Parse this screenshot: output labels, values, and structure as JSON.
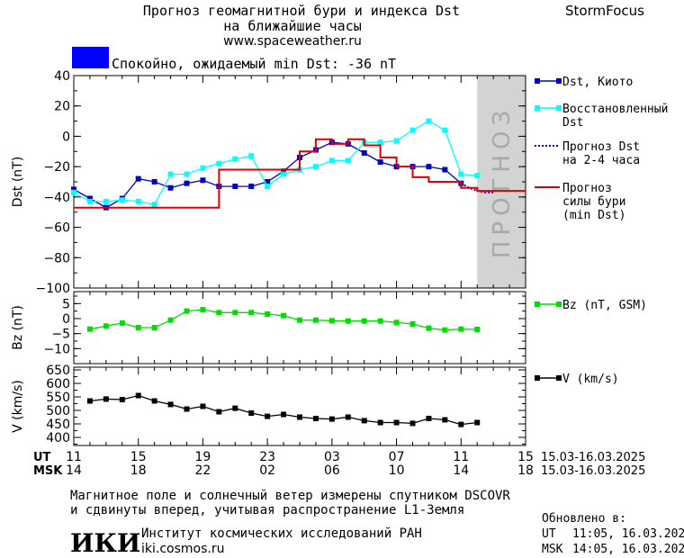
{
  "header": {
    "title_line1": "Прогноз геомагнитной бури и индекса Dst",
    "title_line2": "на ближайшие часы",
    "url": "www.spaceweather.ru",
    "brand": "StormFocus",
    "status_text": "Спокойно, ожидаемый min Dst: -36 nT",
    "status_color": "#0000ff"
  },
  "forecast_label": "ПРОГНОЗ",
  "time_axis": {
    "ut_label": "UT",
    "msk_label": "MSK",
    "ut_ticks": [
      "11",
      "15",
      "19",
      "23",
      "03",
      "07",
      "11",
      "15"
    ],
    "msk_ticks": [
      "14",
      "18",
      "22",
      "02",
      "06",
      "10",
      "14",
      "18"
    ],
    "ut_range": "15.03-16.03.2025",
    "msk_range": "15.03-16.03.2025"
  },
  "footer": {
    "note_line1": "Магнитное поле и солнечный ветер измерены спутником DSCOVR",
    "note_line2": "и сдвинуты вперед, учитывая распространение L1-Земля",
    "logo_text": "ИКИ",
    "institute": "Институт космических исследований РАН",
    "institute_url": "iki.cosmos.ru",
    "updated_label": "Обновлено в:",
    "updated_ut_label": "UT",
    "updated_ut": "11:05, 16.03.2025",
    "updated_msk_label": "MSK",
    "updated_msk": "14:05, 16.03.2025"
  },
  "chart_data": [
    {
      "type": "line",
      "panel": "dst",
      "ylabel": "Dst (nT)",
      "ylim": [
        -100,
        40
      ],
      "yticks": [
        40,
        20,
        0,
        -20,
        -40,
        -60,
        -80,
        -100
      ],
      "xlim": [
        0,
        28
      ],
      "forecast_region": [
        25,
        28
      ],
      "series": [
        {
          "name": "Dst, Киото",
          "color": "#0000cc",
          "marker": "square",
          "x": [
            0,
            1,
            2,
            3,
            4,
            5,
            6,
            7,
            8,
            9,
            10,
            11,
            12,
            13,
            14,
            15,
            16,
            17,
            18,
            19,
            20,
            21,
            22,
            23,
            24
          ],
          "values": [
            -35,
            -41,
            -47,
            -41,
            -28,
            -30,
            -34,
            -31,
            -29,
            -33,
            -33,
            -33,
            -30,
            -23,
            -14,
            -9,
            -4,
            -5,
            -11,
            -17,
            -20,
            -20,
            -20,
            -22,
            -31
          ]
        },
        {
          "name": "Восстановленный Dst",
          "color": "#00ffff",
          "marker": "square",
          "x": [
            0,
            1,
            2,
            3,
            4,
            5,
            6,
            7,
            8,
            9,
            10,
            11,
            12,
            13,
            14,
            15,
            16,
            17,
            18,
            19,
            20,
            21,
            22,
            23,
            24,
            25
          ],
          "values": [
            -37,
            -43,
            -43,
            -42,
            -43,
            -45,
            -25,
            -25,
            -21,
            -18,
            -15,
            -13,
            -33,
            -25,
            -22,
            -20,
            -16,
            -16,
            -4,
            -4,
            -3,
            4,
            10,
            4,
            -25,
            -26
          ]
        },
        {
          "name": "Прогноз Dst на 2-4 часа",
          "color": "#0000cc",
          "style": "dotted",
          "x": [
            24,
            24.5,
            25,
            25.5,
            26
          ],
          "values": [
            -31,
            -34,
            -36,
            -37,
            -37
          ]
        },
        {
          "name": "Прогноз силы бури (min Dst)",
          "color": "#dd0000",
          "x": [
            0,
            1,
            2,
            3,
            4,
            5,
            6,
            7,
            8,
            9,
            10,
            11,
            12,
            13,
            14,
            15,
            16,
            17,
            18,
            19,
            20,
            21,
            22,
            23,
            24,
            25,
            26,
            27,
            28
          ],
          "values": [
            -47,
            -47,
            -47,
            -47,
            -47,
            -47,
            -47,
            -47,
            -47,
            -22,
            -22,
            -22,
            -22,
            -22,
            -10,
            -2,
            -5,
            -2,
            -6,
            -14,
            -20,
            -27,
            -30,
            -30,
            -34,
            -36,
            -36,
            -36,
            -36
          ],
          "step": true
        }
      ]
    },
    {
      "type": "line",
      "panel": "bz",
      "ylabel": "Bz (nT)",
      "ylim": [
        -15,
        9
      ],
      "yticks": [
        5,
        0,
        -5,
        -10
      ],
      "xlim": [
        0,
        28
      ],
      "series": [
        {
          "name": "Bz (nT, GSM)",
          "color": "#00dd00",
          "marker": "square",
          "x": [
            1,
            2,
            3,
            4,
            5,
            6,
            7,
            8,
            9,
            10,
            11,
            12,
            13,
            14,
            15,
            16,
            17,
            18,
            19,
            20,
            21,
            22,
            23,
            24,
            25
          ],
          "values": [
            -3.5,
            -2.5,
            -1.5,
            -3,
            -3,
            -0.5,
            2.5,
            3,
            2,
            2,
            2,
            1.5,
            1,
            -0.5,
            -0.5,
            -0.7,
            -0.8,
            -0.8,
            -0.8,
            -1.3,
            -1.8,
            -3.2,
            -3.8,
            -3.5,
            -3.6
          ]
        }
      ]
    },
    {
      "type": "line",
      "panel": "v",
      "ylabel": "V (km/s)",
      "ylim": [
        370,
        660
      ],
      "yticks": [
        650,
        600,
        550,
        500,
        450,
        400
      ],
      "xlim": [
        0,
        28
      ],
      "series": [
        {
          "name": "V (km/s)",
          "color": "#000000",
          "marker": "square",
          "x": [
            1,
            2,
            3,
            4,
            5,
            6,
            7,
            8,
            9,
            10,
            11,
            12,
            13,
            14,
            15,
            16,
            17,
            18,
            19,
            20,
            21,
            22,
            23,
            24,
            25
          ],
          "values": [
            535,
            542,
            540,
            555,
            535,
            522,
            505,
            515,
            495,
            508,
            490,
            478,
            485,
            475,
            470,
            468,
            475,
            462,
            455,
            455,
            452,
            470,
            465,
            448,
            455
          ]
        }
      ]
    }
  ]
}
